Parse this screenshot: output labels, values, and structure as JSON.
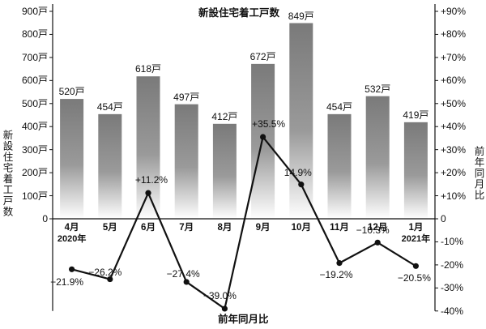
{
  "chart_data": {
    "type": "bar",
    "title": "新設住宅着工戸数",
    "x_title": "前年同月比",
    "ylabel_left": "新設住宅着工戸数",
    "ylabel_right": "前年同月比",
    "categories": [
      "4月",
      "5月",
      "6月",
      "7月",
      "8月",
      "9月",
      "10月",
      "11月",
      "12月",
      "1月"
    ],
    "category_years": [
      "2020年",
      "",
      "",
      "",
      "",
      "",
      "",
      "",
      "",
      "2021年"
    ],
    "ylim_left": [
      0,
      900
    ],
    "ylim_right": [
      -40,
      90
    ],
    "left_ticks": [
      "0",
      "100戸",
      "200戸",
      "300戸",
      "400戸",
      "500戸",
      "600戸",
      "700戸",
      "800戸",
      "900戸"
    ],
    "right_ticks": [
      "-40%",
      "-30%",
      "-20%",
      "-10%",
      "0",
      "+10%",
      "+20%",
      "+30%",
      "+40%",
      "+50%",
      "+60%",
      "+70%",
      "+80%",
      "+90%"
    ],
    "series": [
      {
        "name": "新設住宅着工戸数",
        "type": "bar",
        "axis": "left",
        "values": [
          520,
          454,
          618,
          497,
          412,
          672,
          849,
          454,
          532,
          419
        ],
        "labels": [
          "520戸",
          "454戸",
          "618戸",
          "497戸",
          "412戸",
          "672戸",
          "849戸",
          "454戸",
          "532戸",
          "419戸"
        ]
      },
      {
        "name": "前年同月比",
        "type": "line",
        "axis": "right",
        "values": [
          -21.9,
          -26.2,
          11.2,
          -27.4,
          -39.0,
          35.5,
          14.9,
          -19.2,
          -10.3,
          -20.5
        ],
        "labels": [
          "−21.9%",
          "−26.2%",
          "+11.2%",
          "−27.4%",
          "−39.0%",
          "+35.5%",
          "14.9%",
          "−19.2%",
          "−10.3%",
          "−20.5%"
        ]
      }
    ],
    "colors": {
      "bar_top": "#7a7a7a",
      "bar_bottom": "#ffffff",
      "line": "#111111",
      "axis": "#111111"
    }
  }
}
